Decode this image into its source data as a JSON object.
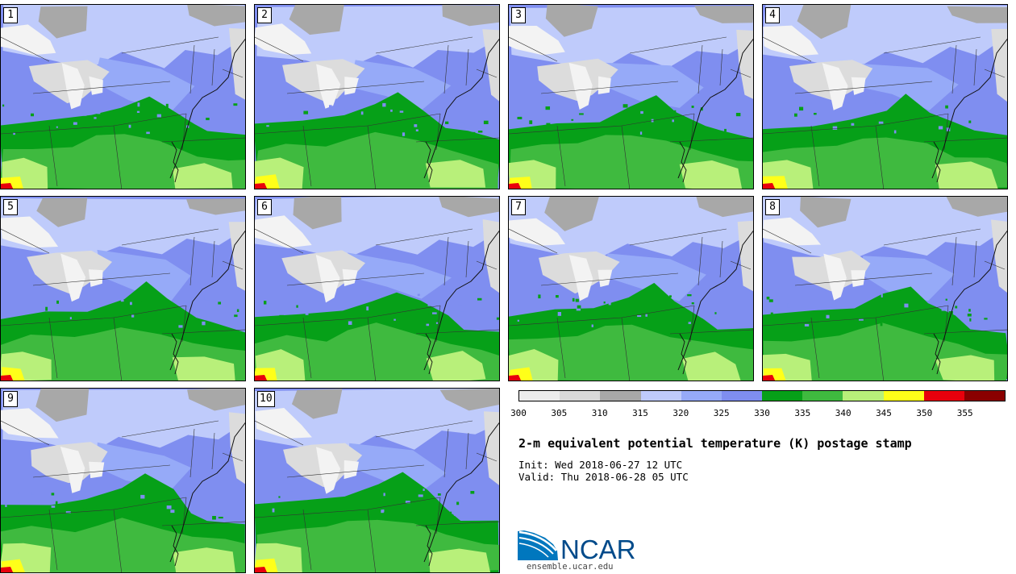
{
  "panels": [
    {
      "label": "1",
      "seed": 11
    },
    {
      "label": "2",
      "seed": 23
    },
    {
      "label": "3",
      "seed": 37
    },
    {
      "label": "4",
      "seed": 41
    },
    {
      "label": "5",
      "seed": 53
    },
    {
      "label": "6",
      "seed": 67
    },
    {
      "label": "7",
      "seed": 71
    },
    {
      "label": "8",
      "seed": 83
    },
    {
      "label": "9",
      "seed": 97
    },
    {
      "label": "10",
      "seed": 101
    }
  ],
  "colorbar": {
    "colors": [
      "#ececec",
      "#d9d9d9",
      "#a8a8a8",
      "#bfcbfb",
      "#96aaf8",
      "#7f8ef0",
      "#06a018",
      "#3fba3f",
      "#b8f07a",
      "#ffff19",
      "#e8000c",
      "#8a0000"
    ],
    "ticks": [
      "300",
      "305",
      "310",
      "315",
      "320",
      "325",
      "330",
      "335",
      "340",
      "345",
      "350",
      "355"
    ]
  },
  "title": "2-m equivalent potential temperature (K) postage stamp",
  "init": "Init: Wed 2018-06-27 12 UTC",
  "valid": "Valid: Thu 2018-06-28 05 UTC",
  "logo": {
    "text": "NCAR",
    "url": "ensemble.ucar.edu"
  }
}
